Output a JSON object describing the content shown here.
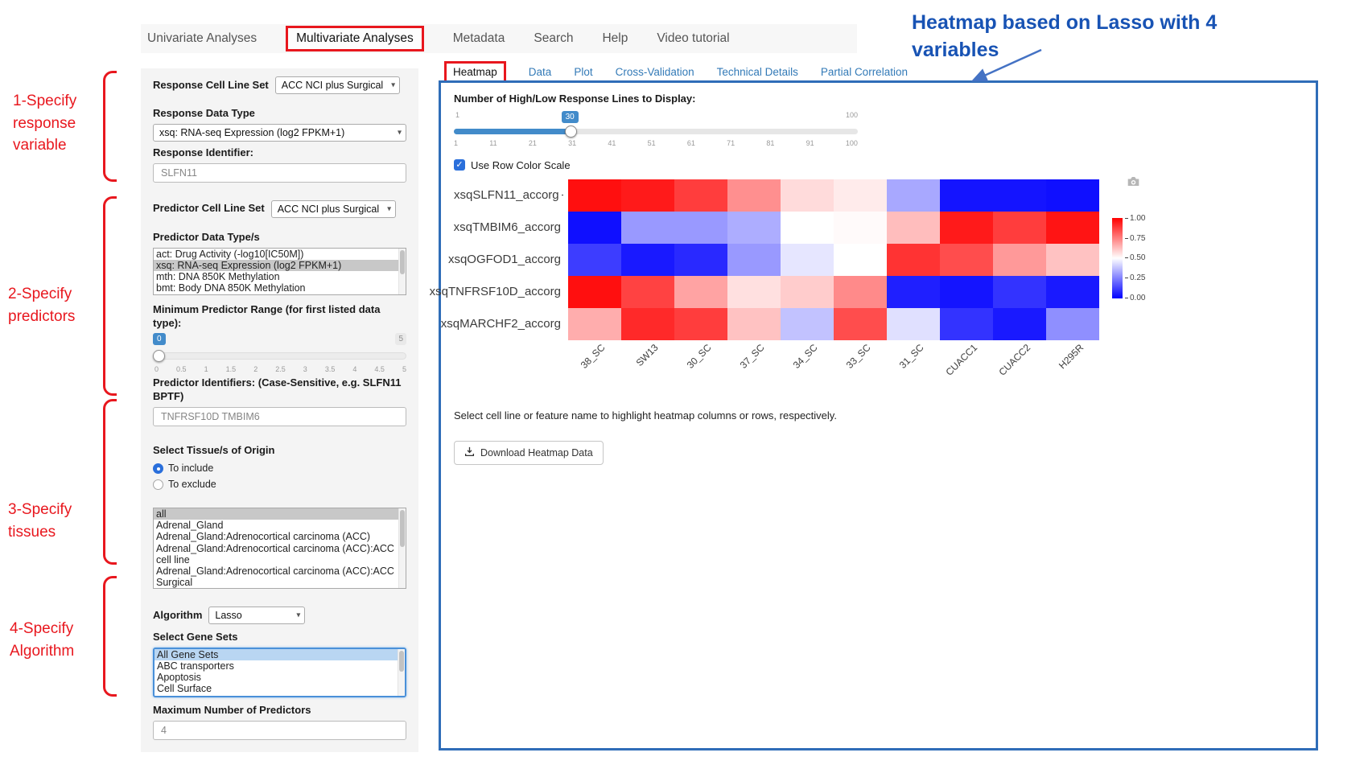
{
  "colors": {
    "annotation_red": "#e8171e",
    "annotation_blue": "#1853b4",
    "panel_border_blue": "#2f6db8",
    "link_blue": "#337ab7",
    "slider_blue": "#428bca",
    "heatmap_high": "#ff0000",
    "heatmap_mid": "#ffffff",
    "heatmap_low": "#0000ff"
  },
  "icons": {
    "chevron_down": "▾",
    "check": "✓"
  },
  "annotations": {
    "heading": "Heatmap based on Lasso with 4 variables",
    "steps": [
      {
        "label": "1-Specify response variable"
      },
      {
        "label": "2-Specify predictors"
      },
      {
        "label": "3-Specify tissues"
      },
      {
        "label": "4-Specify Algorithm"
      }
    ]
  },
  "nav": {
    "items": [
      {
        "label": "Univariate Analyses",
        "active": false
      },
      {
        "label": "Multivariate Analyses",
        "active": true
      },
      {
        "label": "Metadata",
        "active": false
      },
      {
        "label": "Search",
        "active": false
      },
      {
        "label": "Help",
        "active": false
      },
      {
        "label": "Video tutorial",
        "active": false
      }
    ]
  },
  "form": {
    "response_cell_line_set": {
      "label": "Response Cell Line Set",
      "value": "ACC NCI plus Surgical"
    },
    "response_data_type": {
      "label": "Response Data Type",
      "value": "xsq: RNA-seq Expression (log2 FPKM+1)"
    },
    "response_identifier": {
      "label": "Response Identifier:",
      "value": "SLFN11"
    },
    "predictor_cell_line_set": {
      "label": "Predictor Cell Line Set",
      "value": "ACC NCI plus Surgical"
    },
    "predictor_data_types": {
      "label": "Predictor Data Type/s",
      "options": [
        "act: Drug Activity (-log10[IC50M])",
        "xsq: RNA-seq Expression (log2 FPKM+1)",
        "mth: DNA 850K Methylation",
        "bmt: Body DNA 850K Methylation"
      ],
      "selected": "xsq: RNA-seq Expression (log2 FPKM+1)"
    },
    "min_predictor_range": {
      "label": "Minimum Predictor Range (for first listed data type):",
      "value": "0",
      "max": "5",
      "ticks": [
        "0",
        "0.5",
        "1",
        "1.5",
        "2",
        "2.5",
        "3",
        "3.5",
        "4",
        "4.5",
        "5"
      ]
    },
    "predictor_identifiers": {
      "label": "Predictor Identifiers: (Case-Sensitive, e.g. SLFN11 BPTF)",
      "value": "TNFRSF10D TMBIM6"
    },
    "tissue": {
      "label": "Select Tissue/s of Origin",
      "include_option": "To include",
      "exclude_option": "To exclude",
      "selected_mode": "To include",
      "options": [
        "all",
        "Adrenal_Gland",
        "Adrenal_Gland:Adrenocortical carcinoma (ACC)",
        "Adrenal_Gland:Adrenocortical carcinoma (ACC):ACC cell line",
        "Adrenal_Gland:Adrenocortical carcinoma (ACC):ACC Surgical"
      ],
      "selected": "all"
    },
    "algorithm": {
      "label": "Algorithm",
      "value": "Lasso"
    },
    "gene_sets": {
      "label": "Select Gene Sets",
      "options": [
        "All Gene Sets",
        "ABC transporters",
        "Apoptosis",
        "Cell Surface"
      ],
      "selected": "All Gene Sets"
    },
    "max_predictors": {
      "label": "Maximum Number of Predictors",
      "value": "4"
    }
  },
  "main": {
    "tabs": [
      {
        "label": "Heatmap",
        "active": true
      },
      {
        "label": "Data",
        "active": false
      },
      {
        "label": "Plot",
        "active": false
      },
      {
        "label": "Cross-Validation",
        "active": false
      },
      {
        "label": "Technical Details",
        "active": false
      },
      {
        "label": "Partial Correlation",
        "active": false
      }
    ],
    "lines_slider": {
      "label": "Number of High/Low Response Lines to Display:",
      "value": "30",
      "min": "1",
      "max": "100",
      "ticks": [
        "1",
        "11",
        "21",
        "31",
        "41",
        "51",
        "61",
        "71",
        "81",
        "91",
        "100"
      ]
    },
    "row_color_scale_label": "Use Row Color Scale",
    "row_color_scale_checked": true,
    "hint": "Select cell line or feature name to highlight heatmap columns or rows, respectively.",
    "download_button": "Download Heatmap Data"
  },
  "chart_data": {
    "type": "heatmap",
    "rows": [
      "xsqSLFN11_accorg",
      "xsqTMBIM6_accorg",
      "xsqOGFOD1_accorg",
      "xsqTNFRSF10D_accorg",
      "xsqMARCHF2_accorg"
    ],
    "columns": [
      "38_SC",
      "SW13",
      "30_SC",
      "37_SC",
      "34_SC",
      "33_SC",
      "31_SC",
      "CUACC1",
      "CUACC2",
      "H295R"
    ],
    "values": [
      [
        0.97,
        0.95,
        0.88,
        0.72,
        0.57,
        0.54,
        0.33,
        0.04,
        0.04,
        0.03
      ],
      [
        0.03,
        0.3,
        0.3,
        0.34,
        0.5,
        0.51,
        0.63,
        0.95,
        0.88,
        0.96
      ],
      [
        0.12,
        0.05,
        0.08,
        0.3,
        0.45,
        0.5,
        0.9,
        0.85,
        0.7,
        0.62
      ],
      [
        0.97,
        0.87,
        0.68,
        0.56,
        0.6,
        0.73,
        0.06,
        0.04,
        0.1,
        0.05
      ],
      [
        0.66,
        0.92,
        0.88,
        0.62,
        0.38,
        0.85,
        0.44,
        0.1,
        0.05,
        0.28
      ]
    ],
    "colorbar": {
      "min": 0,
      "max": 1,
      "ticks": [
        "1.00",
        "0.75",
        "0.50",
        "0.25",
        "0.00"
      ]
    },
    "colorscale": "blue-white-red",
    "legend_position": "right"
  }
}
